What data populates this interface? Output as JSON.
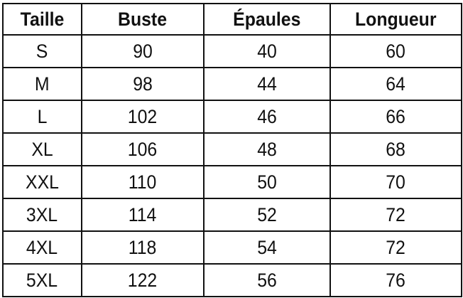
{
  "table": {
    "headers": [
      "Taille",
      "Buste",
      "Épaules",
      "Longueur"
    ],
    "rows": [
      [
        "S",
        "90",
        "40",
        "60"
      ],
      [
        "M",
        "98",
        "44",
        "64"
      ],
      [
        "L",
        "102",
        "46",
        "66"
      ],
      [
        "XL",
        "106",
        "48",
        "68"
      ],
      [
        "XXL",
        "110",
        "50",
        "70"
      ],
      [
        "3XL",
        "114",
        "52",
        "72"
      ],
      [
        "4XL",
        "118",
        "54",
        "72"
      ],
      [
        "5XL",
        "122",
        "56",
        "76"
      ]
    ]
  }
}
